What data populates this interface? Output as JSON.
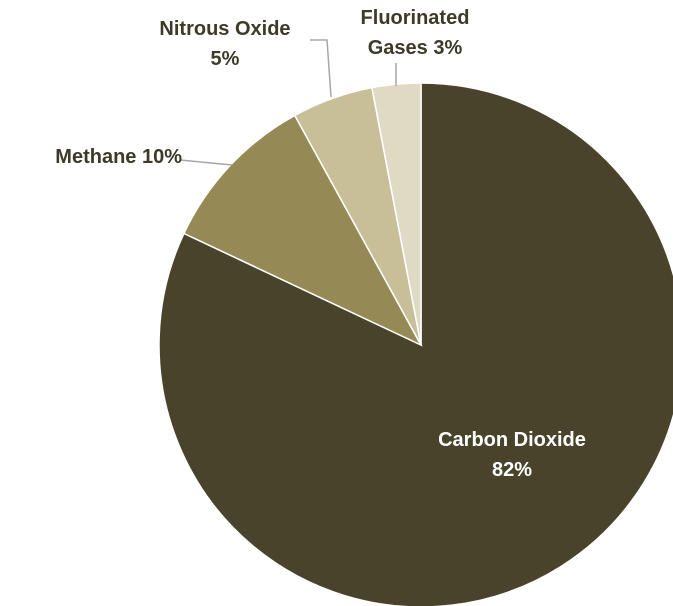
{
  "chart_data": {
    "type": "pie",
    "categories": [
      "Carbon Dioxide",
      "Methane",
      "Nitrous Oxide",
      "Fluorinated Gases"
    ],
    "values": [
      82,
      10,
      5,
      3
    ],
    "value_labels": [
      "82%",
      "10%",
      "5%",
      "3%"
    ],
    "colors": [
      "#4a432c",
      "#958a55",
      "#c8bf99",
      "#e0dac4"
    ]
  }
}
